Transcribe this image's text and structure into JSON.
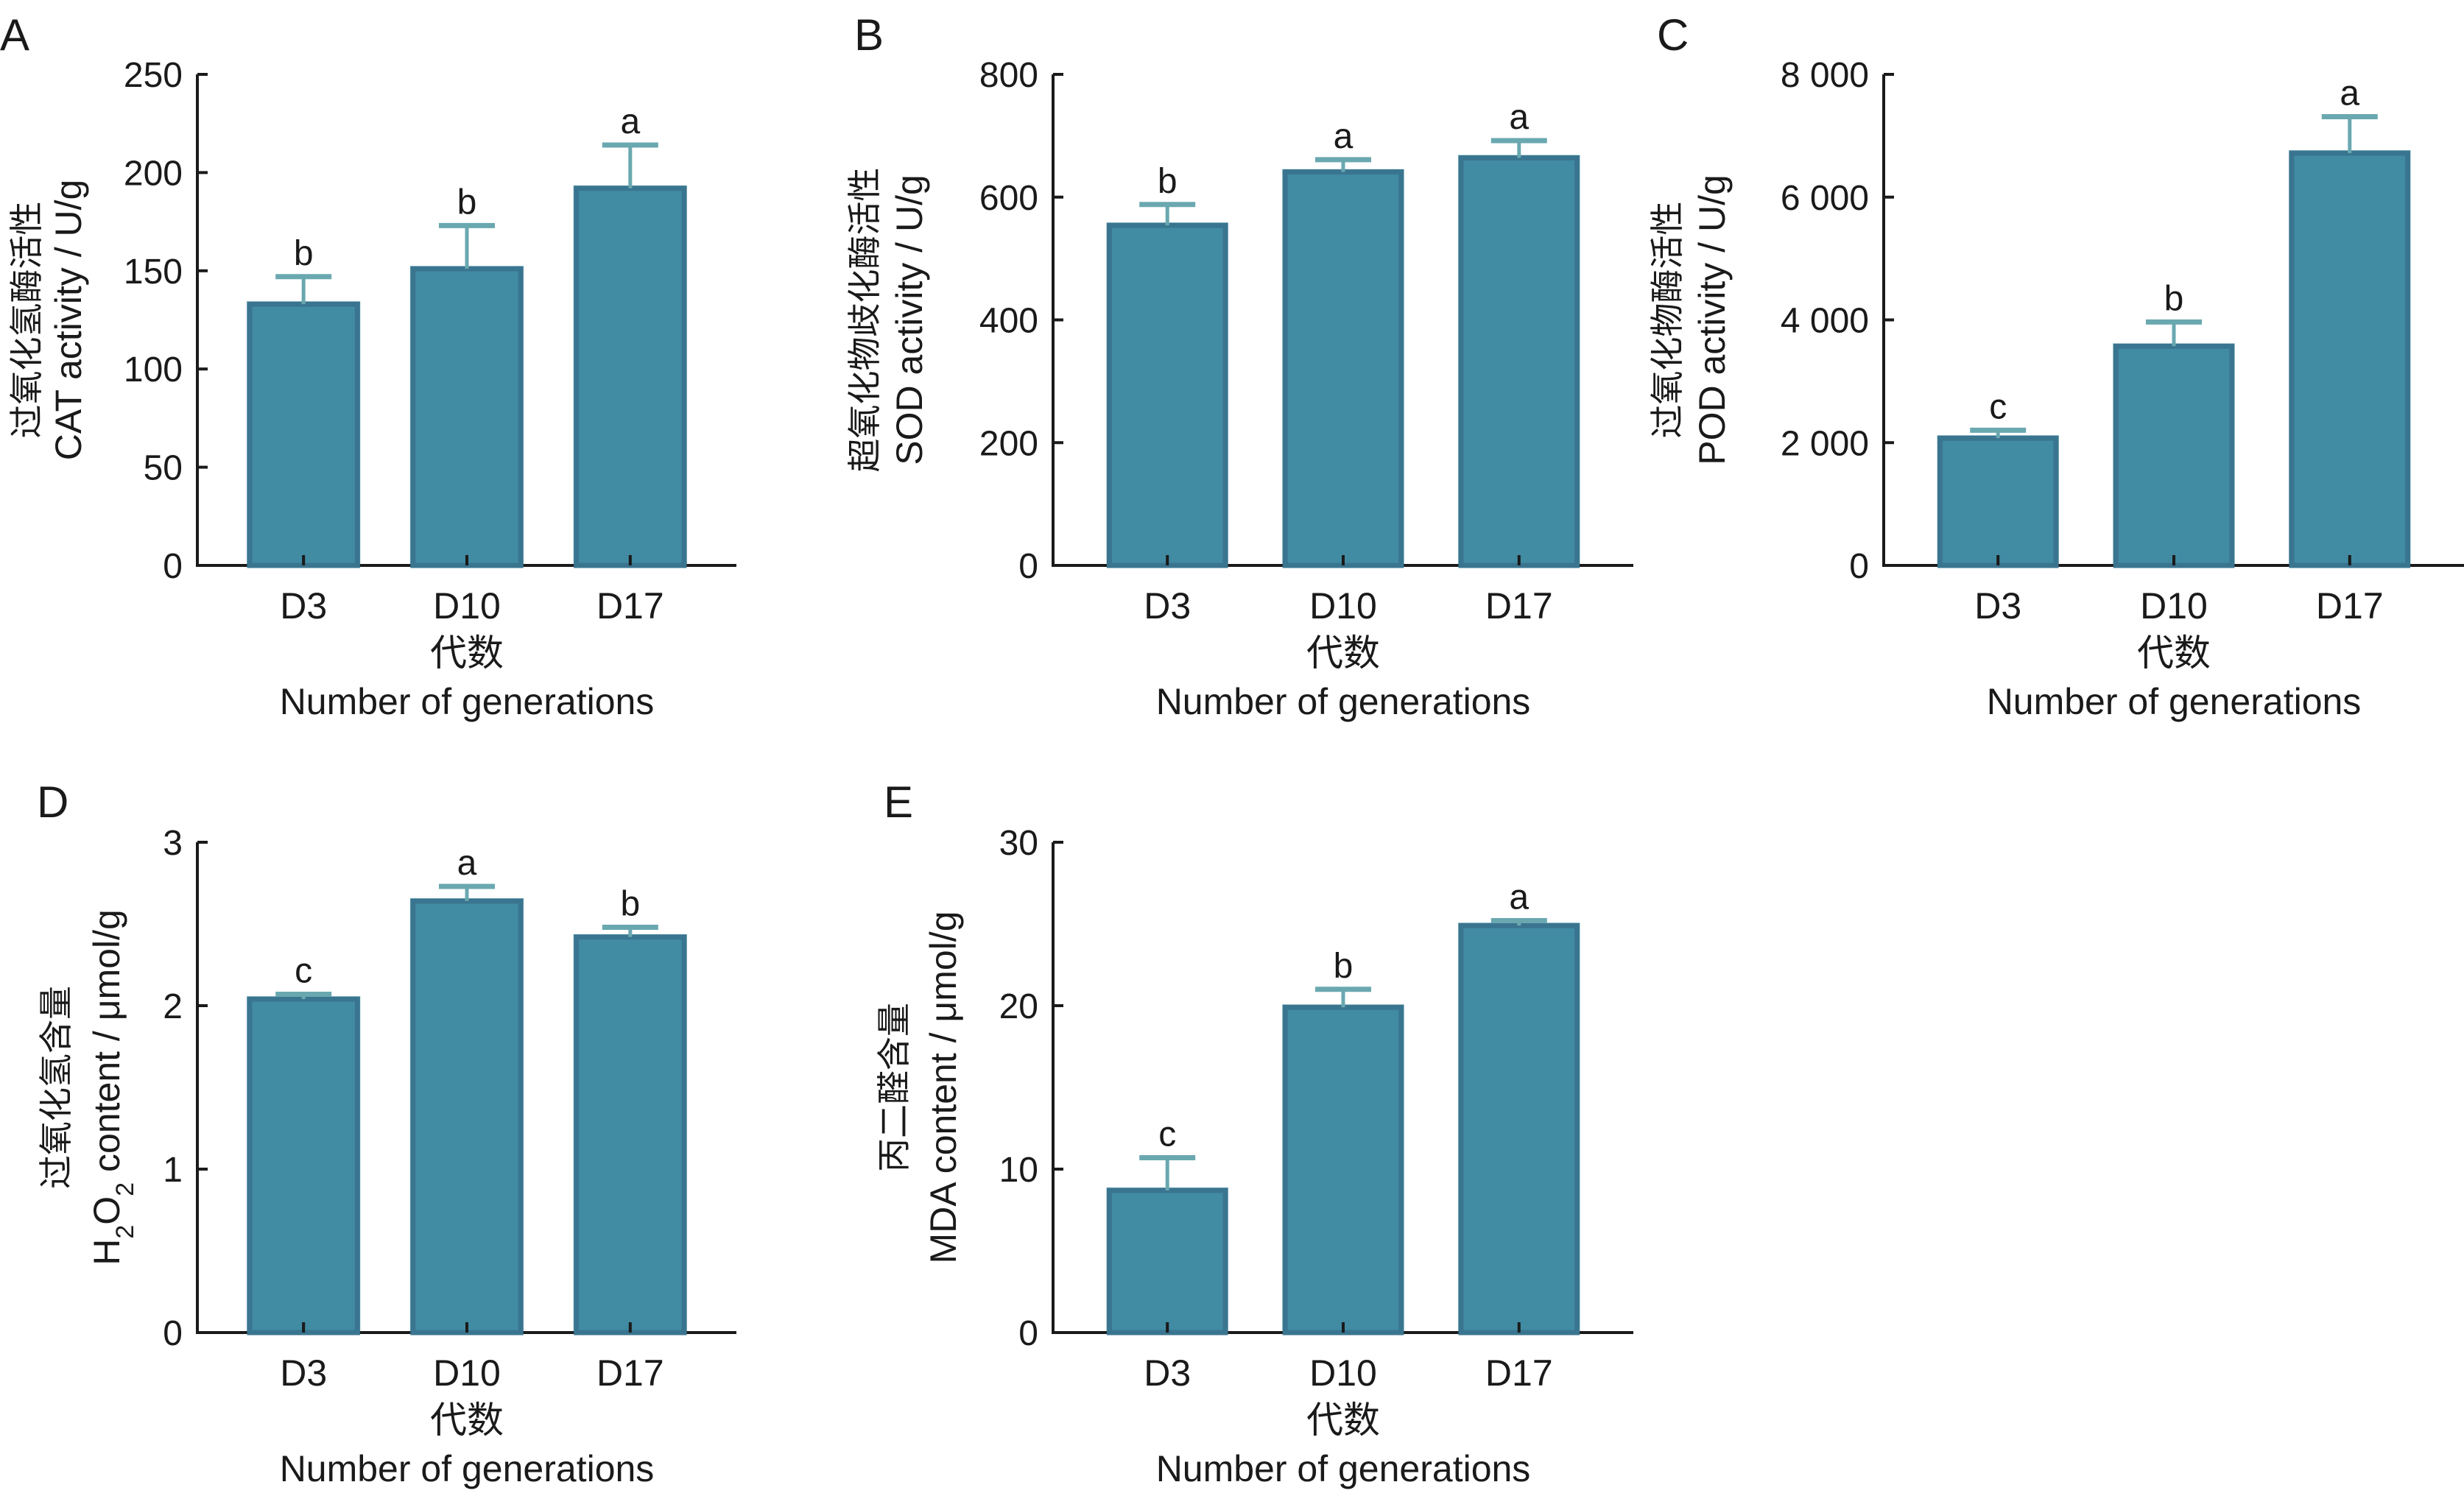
{
  "colors": {
    "bar_fill": "#418ba3",
    "bar_edge": "#3a7590",
    "bar_halo": "#a9d0d5",
    "error_bar": "#6aa8b0",
    "axis": "#1a1a1a"
  },
  "chart_data": [
    {
      "panel": "A",
      "type": "bar",
      "categories": [
        "D3",
        "D10",
        "D17"
      ],
      "values": [
        133,
        151,
        192
      ],
      "error_upper": [
        147,
        173,
        214
      ],
      "significance": [
        "b",
        "b",
        "a"
      ],
      "ylabel_cn": "过氧化氢酶活性",
      "ylabel_en": "CAT activity / U/g",
      "ylabel_sub": null,
      "xlabel_cn": "代数",
      "xlabel_en": "Number of generations",
      "ylim": [
        0,
        250
      ],
      "yticks": [
        0,
        50,
        100,
        150,
        200,
        250
      ],
      "ytick_labels": [
        "0",
        "50",
        "100",
        "150",
        "200",
        "250"
      ]
    },
    {
      "panel": "B",
      "type": "bar",
      "categories": [
        "D3",
        "D10",
        "D17"
      ],
      "values": [
        554,
        641,
        664
      ],
      "error_upper": [
        588,
        661,
        692
      ],
      "significance": [
        "b",
        "a",
        "a"
      ],
      "ylabel_cn": "超氧化物歧化酶活性",
      "ylabel_en": "SOD activity / U/g",
      "xlabel_cn": "代数",
      "xlabel_en": "Number of generations",
      "ylim": [
        0,
        800
      ],
      "yticks": [
        0,
        200,
        400,
        600,
        800
      ],
      "ytick_labels": [
        "0",
        "200",
        "400",
        "600",
        "800"
      ]
    },
    {
      "panel": "C",
      "type": "bar",
      "categories": [
        "D3",
        "D10",
        "D17"
      ],
      "values": [
        2073,
        3571,
        6717
      ],
      "error_upper": [
        2203,
        3966,
        7311
      ],
      "significance": [
        "c",
        "b",
        "a"
      ],
      "ylabel_cn": "过氧化物酶活性",
      "ylabel_en": "POD activity / U/g",
      "xlabel_cn": "代数",
      "xlabel_en": "Number of generations",
      "ylim": [
        0,
        8000
      ],
      "yticks": [
        0,
        2000,
        4000,
        6000,
        8000
      ],
      "ytick_labels": [
        "0",
        "2 000",
        "4 000",
        "6 000",
        "8 000"
      ]
    },
    {
      "panel": "D",
      "type": "bar",
      "categories": [
        "D3",
        "D10",
        "D17"
      ],
      "values": [
        2.04,
        2.64,
        2.42
      ],
      "error_upper": [
        2.07,
        2.73,
        2.48
      ],
      "significance": [
        "c",
        "a",
        "b"
      ],
      "ylabel_cn": "过氧化氢含量",
      "ylabel_en": "H2O2 content / μmol/g",
      "xlabel_cn": "代数",
      "xlabel_en": "Number of generations",
      "ylim": [
        0,
        3
      ],
      "yticks": [
        0,
        1,
        2,
        3
      ],
      "ytick_labels": [
        "0",
        "1",
        "2",
        "3"
      ]
    },
    {
      "panel": "E",
      "type": "bar",
      "categories": [
        "D3",
        "D10",
        "D17"
      ],
      "values": [
        8.7,
        19.9,
        24.9
      ],
      "error_upper": [
        10.7,
        21.0,
        25.2
      ],
      "significance": [
        "c",
        "b",
        "a"
      ],
      "ylabel_cn": "丙二醛含量",
      "ylabel_en": "MDA content / μmol/g",
      "xlabel_cn": "代数",
      "xlabel_en": "Number of generations",
      "ylim": [
        0,
        30
      ],
      "yticks": [
        0,
        10,
        20,
        30
      ],
      "ytick_labels": [
        "0",
        "10",
        "20",
        "30"
      ]
    }
  ]
}
